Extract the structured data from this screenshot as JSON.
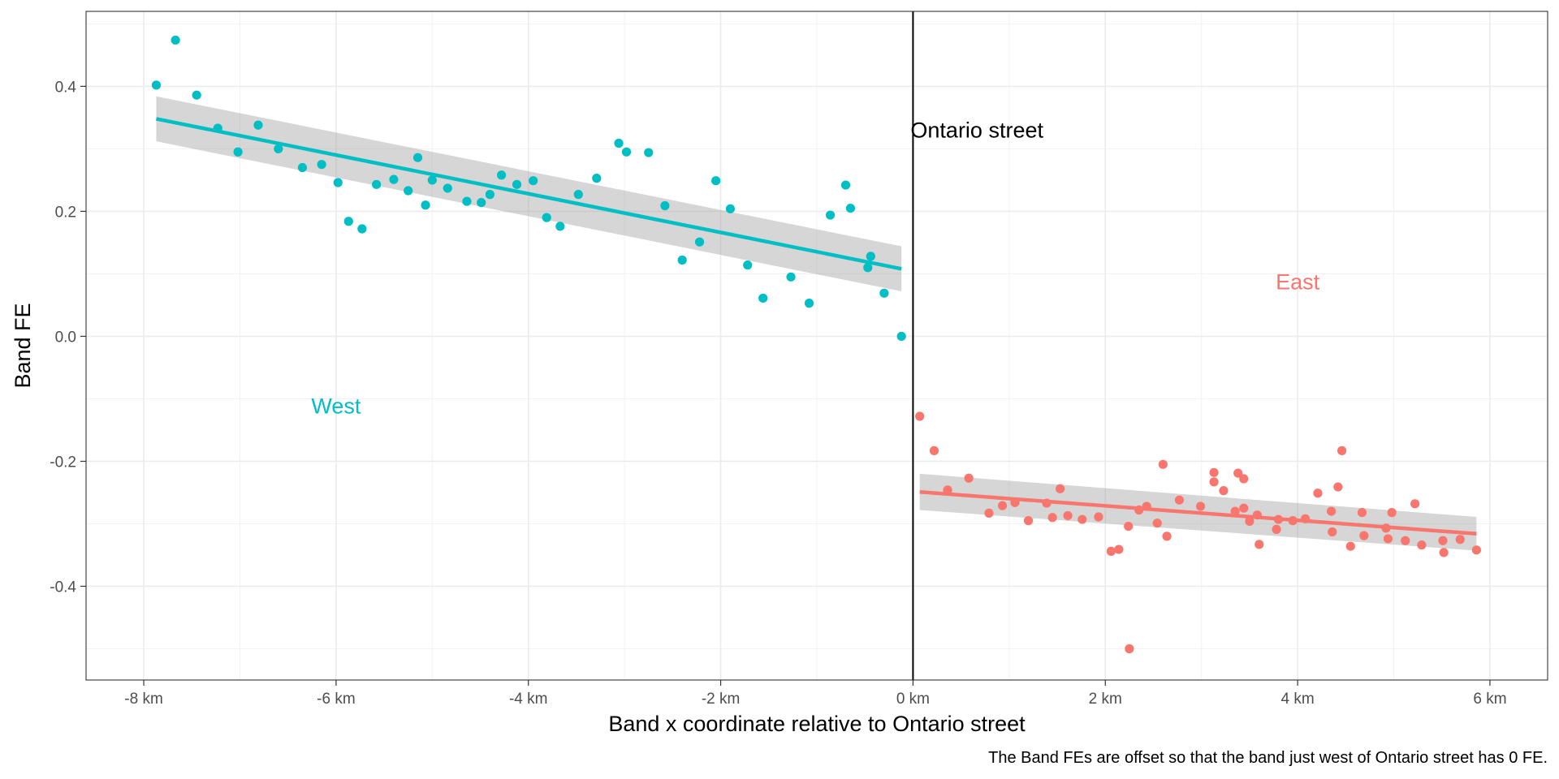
{
  "chart_data": {
    "type": "scatter",
    "title": "",
    "xlabel": "Band x coordinate relative to Ontario street",
    "ylabel": "Band FE",
    "caption": "The Band FEs are offset so that the band just west of Ontario street has 0 FE.",
    "xlim": [
      -8.6,
      6.6
    ],
    "ylim": [
      -0.55,
      0.52
    ],
    "x_ticks": [
      -8,
      -6,
      -4,
      -2,
      0,
      2,
      4,
      6
    ],
    "x_tick_labels": [
      "-8 km",
      "-6 km",
      "-4 km",
      "-2 km",
      "0 km",
      "2 km",
      "4 km",
      "6 km"
    ],
    "y_ticks": [
      -0.4,
      -0.2,
      0.0,
      0.2,
      0.4
    ],
    "y_tick_labels": [
      "-0.4",
      "-0.2",
      "0.0",
      "0.2",
      "0.4"
    ],
    "grid": true,
    "vline": {
      "x": 0,
      "label": "Ontario street",
      "label_y": 0.33
    },
    "annotations": [
      {
        "text": "West",
        "x": -6.0,
        "y": -0.112,
        "color": "#00BFC4"
      },
      {
        "text": "East",
        "x": 4.0,
        "y": 0.087,
        "color": "#F8766D"
      }
    ],
    "series": [
      {
        "key": "west",
        "color": "#00BFC4",
        "fit": {
          "x": [
            -7.87,
            -0.12
          ],
          "y": [
            0.348,
            0.108
          ],
          "ci_lower": [
            0.312,
            0.072
          ],
          "ci_upper": [
            0.384,
            0.144
          ]
        },
        "points": [
          [
            -7.87,
            0.402
          ],
          [
            -7.67,
            0.474
          ],
          [
            -7.45,
            0.386
          ],
          [
            -7.23,
            0.333
          ],
          [
            -7.02,
            0.295
          ],
          [
            -6.81,
            0.338
          ],
          [
            -6.6,
            0.3
          ],
          [
            -6.35,
            0.27
          ],
          [
            -6.15,
            0.275
          ],
          [
            -5.98,
            0.246
          ],
          [
            -5.87,
            0.184
          ],
          [
            -5.73,
            0.172
          ],
          [
            -5.58,
            0.243
          ],
          [
            -5.4,
            0.251
          ],
          [
            -5.25,
            0.233
          ],
          [
            -5.15,
            0.286
          ],
          [
            -5.07,
            0.21
          ],
          [
            -5.0,
            0.25
          ],
          [
            -4.84,
            0.237
          ],
          [
            -4.64,
            0.216
          ],
          [
            -4.49,
            0.214
          ],
          [
            -4.4,
            0.227
          ],
          [
            -4.28,
            0.258
          ],
          [
            -4.12,
            0.243
          ],
          [
            -3.95,
            0.249
          ],
          [
            -3.81,
            0.19
          ],
          [
            -3.67,
            0.176
          ],
          [
            -3.48,
            0.227
          ],
          [
            -3.29,
            0.253
          ],
          [
            -3.06,
            0.309
          ],
          [
            -2.98,
            0.295
          ],
          [
            -2.75,
            0.294
          ],
          [
            -2.58,
            0.209
          ],
          [
            -2.4,
            0.122
          ],
          [
            -2.22,
            0.151
          ],
          [
            -2.05,
            0.249
          ],
          [
            -1.9,
            0.204
          ],
          [
            -1.72,
            0.114
          ],
          [
            -1.56,
            0.061
          ],
          [
            -1.27,
            0.095
          ],
          [
            -1.08,
            0.053
          ],
          [
            -0.86,
            0.194
          ],
          [
            -0.7,
            0.242
          ],
          [
            -0.65,
            0.205
          ],
          [
            -0.47,
            0.11
          ],
          [
            -0.44,
            0.128
          ],
          [
            -0.3,
            0.069
          ],
          [
            -0.12,
            0.0
          ]
        ]
      },
      {
        "key": "east",
        "color": "#F8766D",
        "fit": {
          "x": [
            0.07,
            5.86
          ],
          "y": [
            -0.249,
            -0.316
          ],
          "ci_lower": [
            -0.278,
            -0.343
          ],
          "ci_upper": [
            -0.22,
            -0.289
          ]
        },
        "points": [
          [
            0.07,
            -0.128
          ],
          [
            0.22,
            -0.183
          ],
          [
            0.36,
            -0.246
          ],
          [
            0.58,
            -0.227
          ],
          [
            0.79,
            -0.283
          ],
          [
            0.93,
            -0.271
          ],
          [
            1.06,
            -0.266
          ],
          [
            1.2,
            -0.295
          ],
          [
            1.39,
            -0.267
          ],
          [
            1.45,
            -0.29
          ],
          [
            1.53,
            -0.244
          ],
          [
            1.61,
            -0.287
          ],
          [
            1.76,
            -0.293
          ],
          [
            1.93,
            -0.289
          ],
          [
            2.06,
            -0.344
          ],
          [
            2.14,
            -0.341
          ],
          [
            2.24,
            -0.304
          ],
          [
            2.25,
            -0.5
          ],
          [
            2.35,
            -0.278
          ],
          [
            2.43,
            -0.272
          ],
          [
            2.54,
            -0.299
          ],
          [
            2.6,
            -0.205
          ],
          [
            2.64,
            -0.32
          ],
          [
            2.77,
            -0.262
          ],
          [
            2.99,
            -0.272
          ],
          [
            3.13,
            -0.218
          ],
          [
            3.13,
            -0.233
          ],
          [
            3.23,
            -0.247
          ],
          [
            3.35,
            -0.28
          ],
          [
            3.38,
            -0.219
          ],
          [
            3.44,
            -0.228
          ],
          [
            3.44,
            -0.275
          ],
          [
            3.5,
            -0.296
          ],
          [
            3.58,
            -0.286
          ],
          [
            3.6,
            -0.333
          ],
          [
            3.78,
            -0.309
          ],
          [
            3.8,
            -0.293
          ],
          [
            3.95,
            -0.295
          ],
          [
            4.08,
            -0.292
          ],
          [
            4.21,
            -0.251
          ],
          [
            4.35,
            -0.28
          ],
          [
            4.36,
            -0.313
          ],
          [
            4.42,
            -0.241
          ],
          [
            4.46,
            -0.183
          ],
          [
            4.55,
            -0.336
          ],
          [
            4.67,
            -0.282
          ],
          [
            4.69,
            -0.319
          ],
          [
            4.92,
            -0.307
          ],
          [
            4.94,
            -0.324
          ],
          [
            4.98,
            -0.282
          ],
          [
            5.12,
            -0.327
          ],
          [
            5.22,
            -0.268
          ],
          [
            5.29,
            -0.334
          ],
          [
            5.51,
            -0.327
          ],
          [
            5.52,
            -0.346
          ],
          [
            5.69,
            -0.325
          ],
          [
            5.86,
            -0.342
          ]
        ]
      }
    ]
  }
}
